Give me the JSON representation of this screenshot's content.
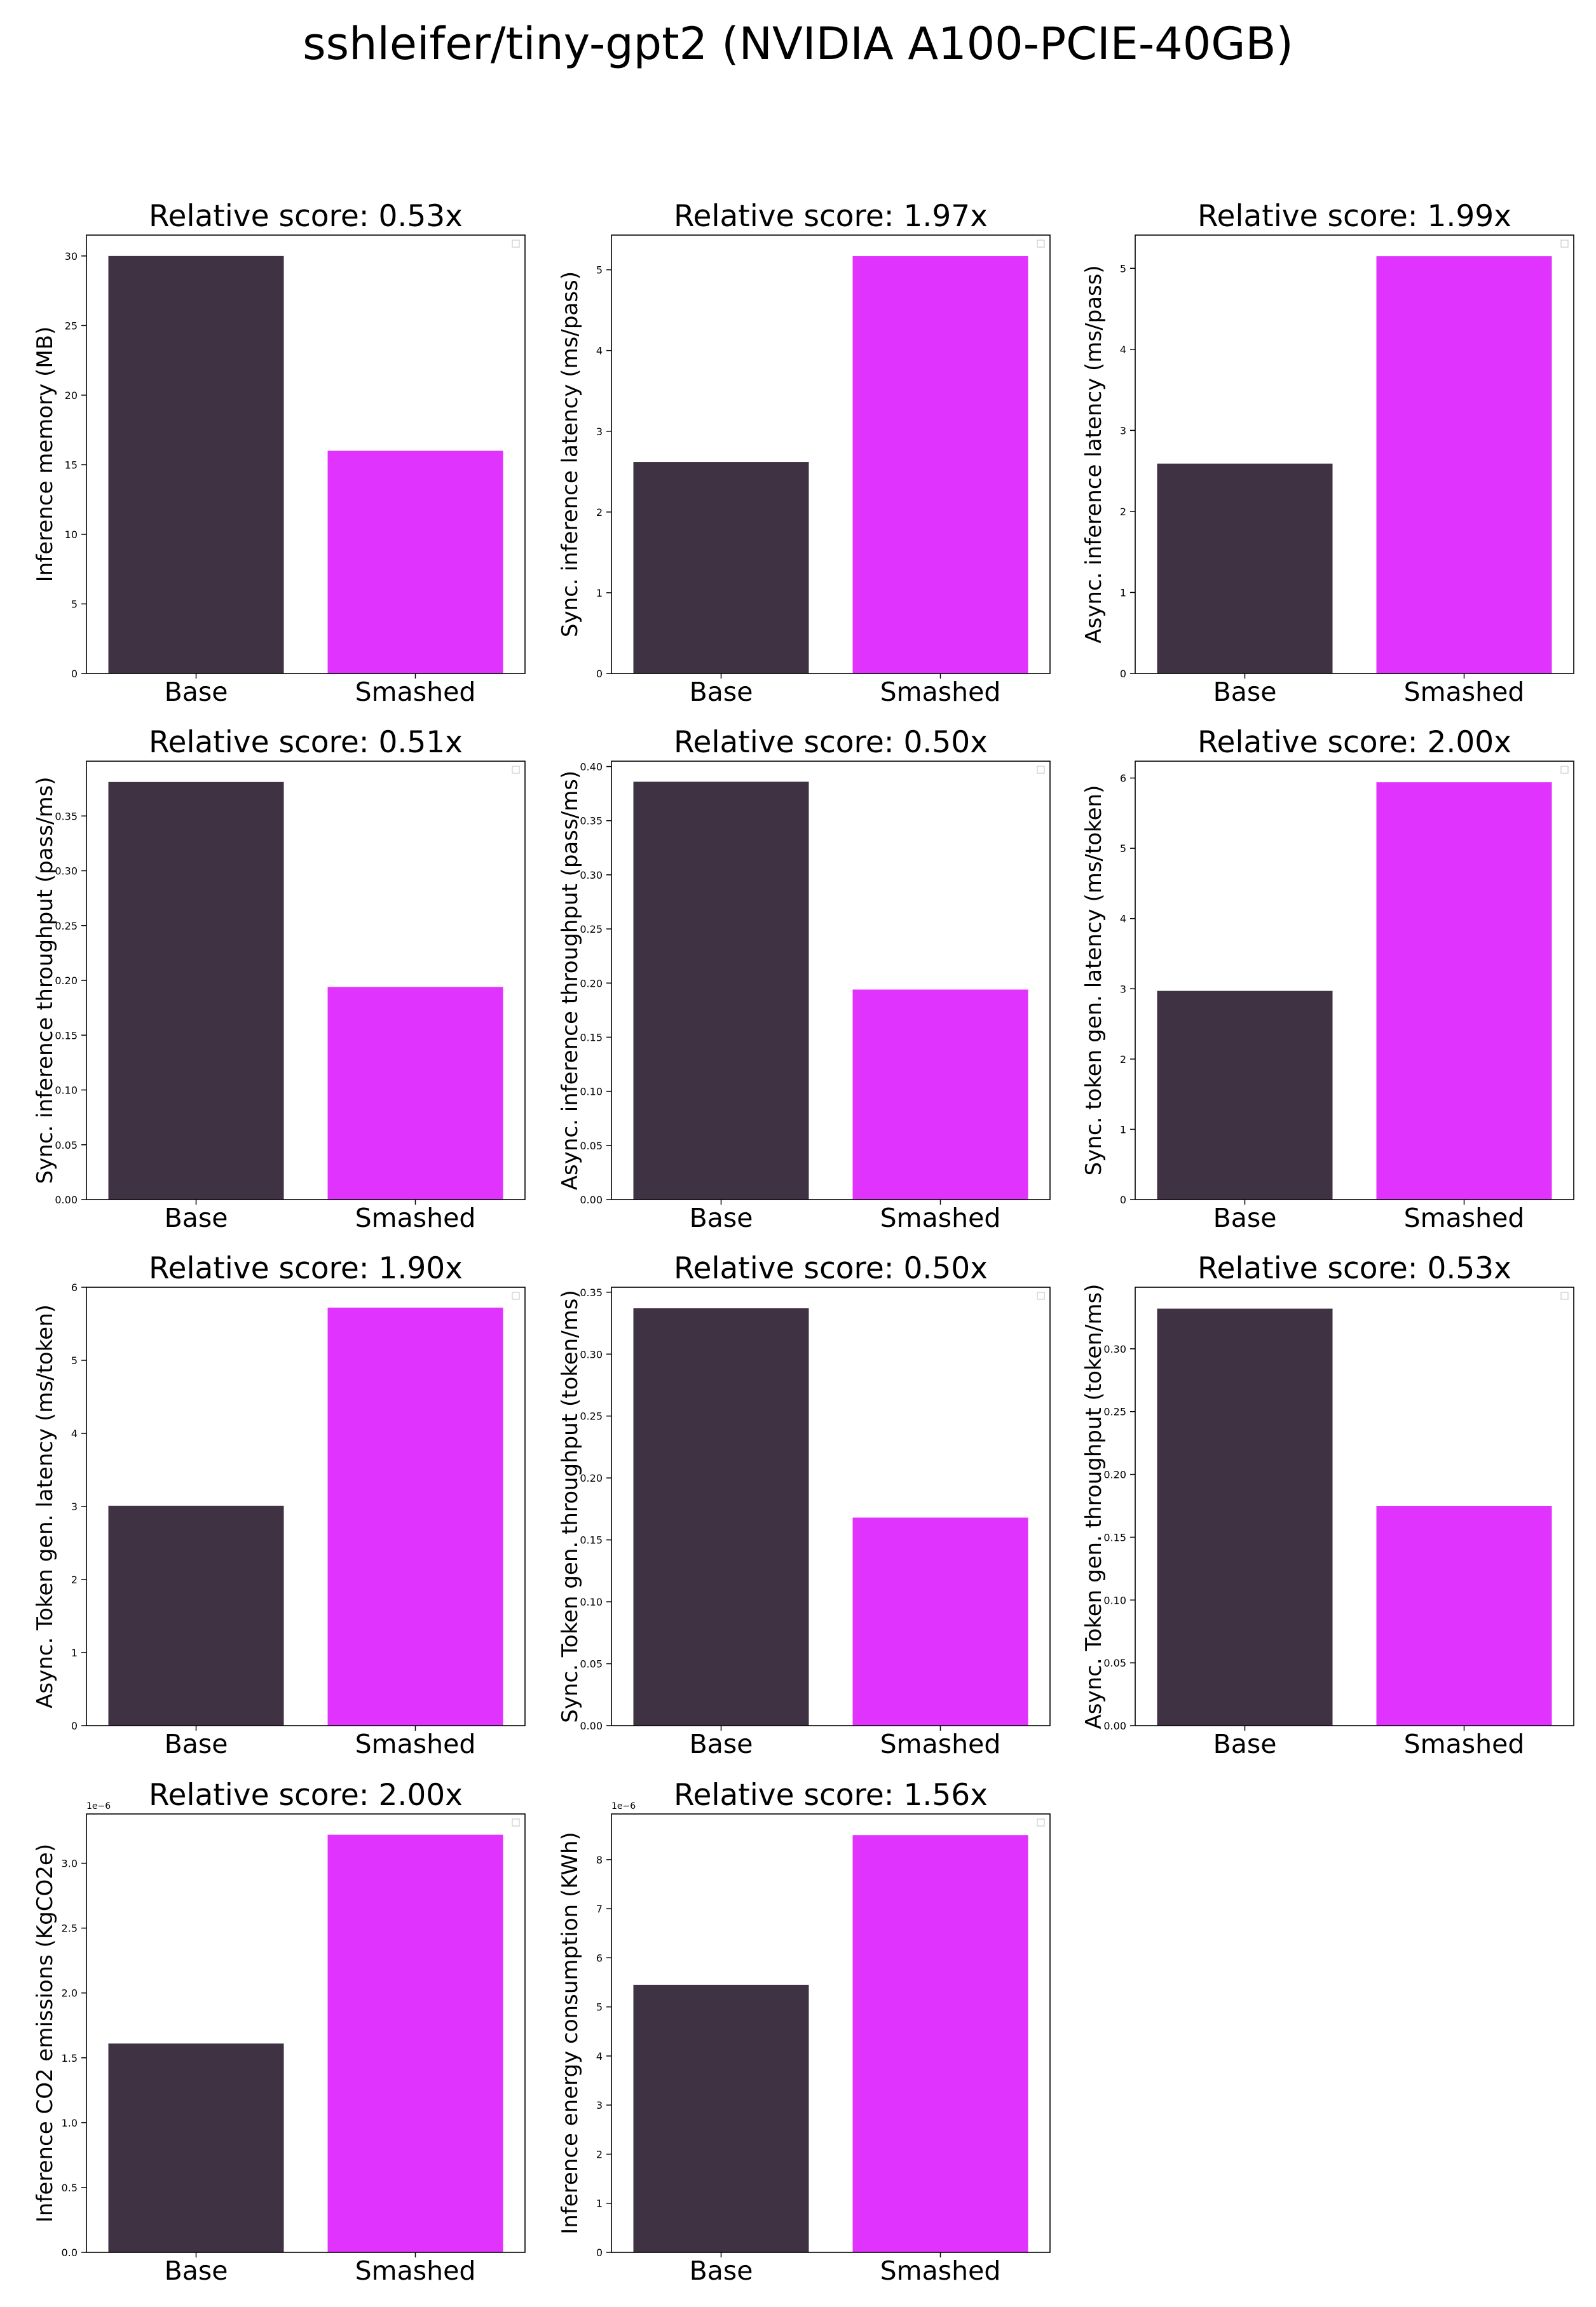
{
  "figure": {
    "title": "sshleifer/tiny-gpt2 (NVIDIA A100-PCIE-40GB)"
  },
  "colors": {
    "base": "#3f3242",
    "smashed": "#e033fd"
  },
  "chart_data": [
    {
      "type": "bar",
      "title": "Relative score: 0.53x",
      "ylabel": "Inference memory (MB)",
      "categories": [
        "Base",
        "Smashed"
      ],
      "values": [
        30.0,
        16.0
      ],
      "ylim": [
        0,
        31.5
      ],
      "yticks": [
        0,
        5,
        10,
        15,
        20,
        25,
        30
      ],
      "tick_decimals": 0,
      "legend": "top-right (empty)"
    },
    {
      "type": "bar",
      "title": "Relative score: 1.97x",
      "ylabel": "Sync. inference latency (ms/pass)",
      "categories": [
        "Base",
        "Smashed"
      ],
      "values": [
        2.62,
        5.17
      ],
      "ylim": [
        0,
        5.43
      ],
      "yticks": [
        0,
        1,
        2,
        3,
        4,
        5
      ],
      "tick_decimals": 0,
      "legend": "top-right (empty)"
    },
    {
      "type": "bar",
      "title": "Relative score: 1.99x",
      "ylabel": "Async. inference latency (ms/pass)",
      "categories": [
        "Base",
        "Smashed"
      ],
      "values": [
        2.59,
        5.15
      ],
      "ylim": [
        0,
        5.41
      ],
      "yticks": [
        0,
        1,
        2,
        3,
        4,
        5
      ],
      "tick_decimals": 0,
      "legend": "top-right (empty)"
    },
    {
      "type": "bar",
      "title": "Relative score: 0.51x",
      "ylabel": "Sync. inference throughput (pass/ms)",
      "categories": [
        "Base",
        "Smashed"
      ],
      "values": [
        0.381,
        0.194
      ],
      "ylim": [
        0,
        0.4
      ],
      "yticks": [
        0.0,
        0.05,
        0.1,
        0.15,
        0.2,
        0.25,
        0.3,
        0.35
      ],
      "tick_decimals": 2,
      "legend": "top-right (empty)"
    },
    {
      "type": "bar",
      "title": "Relative score: 0.50x",
      "ylabel": "Async. inference throughput (pass/ms)",
      "categories": [
        "Base",
        "Smashed"
      ],
      "values": [
        0.386,
        0.194
      ],
      "ylim": [
        0,
        0.405
      ],
      "yticks": [
        0.0,
        0.05,
        0.1,
        0.15,
        0.2,
        0.25,
        0.3,
        0.35,
        0.4
      ],
      "tick_decimals": 2,
      "legend": "top-right (empty)"
    },
    {
      "type": "bar",
      "title": "Relative score: 2.00x",
      "ylabel": "Sync. token gen. latency (ms/token)",
      "categories": [
        "Base",
        "Smashed"
      ],
      "values": [
        2.97,
        5.94
      ],
      "ylim": [
        0,
        6.24
      ],
      "yticks": [
        0,
        1,
        2,
        3,
        4,
        5,
        6
      ],
      "tick_decimals": 0,
      "legend": "top-right (empty)"
    },
    {
      "type": "bar",
      "title": "Relative score: 1.90x",
      "ylabel": "Async. Token gen. latency (ms/token)",
      "categories": [
        "Base",
        "Smashed"
      ],
      "values": [
        3.01,
        5.72
      ],
      "ylim": [
        0,
        6.0
      ],
      "yticks": [
        0,
        1,
        2,
        3,
        4,
        5,
        6
      ],
      "tick_decimals": 0,
      "legend": "top-right (empty)"
    },
    {
      "type": "bar",
      "title": "Relative score: 0.50x",
      "ylabel": "Sync. Token gen. throughput (token/ms)",
      "categories": [
        "Base",
        "Smashed"
      ],
      "values": [
        0.337,
        0.168
      ],
      "ylim": [
        0,
        0.354
      ],
      "yticks": [
        0.0,
        0.05,
        0.1,
        0.15,
        0.2,
        0.25,
        0.3,
        0.35
      ],
      "tick_decimals": 2,
      "legend": "top-right (empty)"
    },
    {
      "type": "bar",
      "title": "Relative score: 0.53x",
      "ylabel": "Async. Token gen. throughput (token/ms)",
      "categories": [
        "Base",
        "Smashed"
      ],
      "values": [
        0.332,
        0.175
      ],
      "ylim": [
        0,
        0.349
      ],
      "yticks": [
        0.0,
        0.05,
        0.1,
        0.15,
        0.2,
        0.25,
        0.3
      ],
      "tick_decimals": 2,
      "legend": "top-right (empty)"
    },
    {
      "type": "bar",
      "title": "Relative score: 2.00x",
      "ylabel": "Inference CO2 emissions (KgCO2e)",
      "categories": [
        "Base",
        "Smashed"
      ],
      "values": [
        1.61e-06,
        3.22e-06
      ],
      "ylim": [
        0,
        3.38e-06
      ],
      "yticks": [
        0.0,
        0.5,
        1.0,
        1.5,
        2.0,
        2.5,
        3.0
      ],
      "tick_scale": 1e-06,
      "offset_text": "1e−6",
      "tick_decimals": 1,
      "legend": "top-right (empty)"
    },
    {
      "type": "bar",
      "title": "Relative score: 1.56x",
      "ylabel": "Inference energy consumption (KWh)",
      "categories": [
        "Base",
        "Smashed"
      ],
      "values": [
        5.45e-06,
        8.5e-06
      ],
      "ylim": [
        0,
        8.93e-06
      ],
      "yticks": [
        0,
        1,
        2,
        3,
        4,
        5,
        6,
        7,
        8
      ],
      "tick_scale": 1e-06,
      "offset_text": "1e−6",
      "tick_decimals": 0,
      "legend": "top-right (empty)"
    }
  ]
}
